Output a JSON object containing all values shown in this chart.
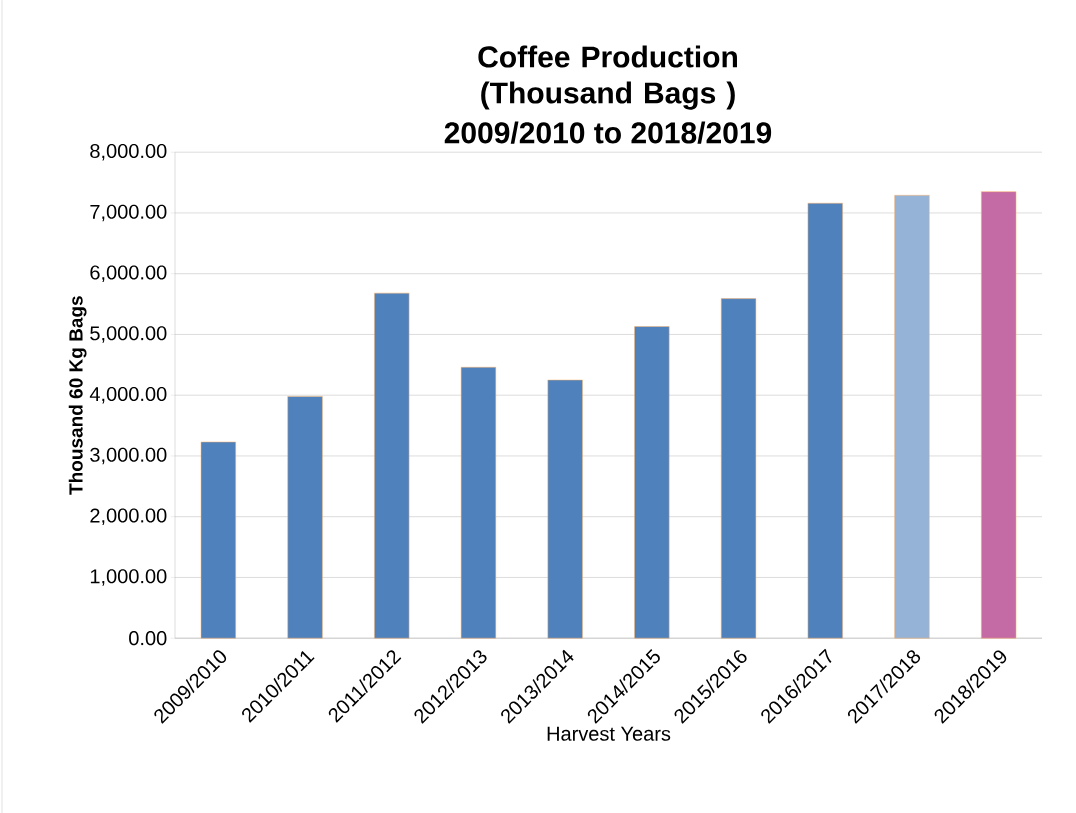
{
  "chart_data": {
    "type": "bar",
    "title": "Coffee Production (Thousand Bags )",
    "subtitle": "2009/2010  to  2018/2019",
    "xlabel": "Harvest Years",
    "ylabel": "Thousand 60 Kg Bags",
    "categories": [
      "2009/2010",
      "2010/2011",
      "2011/2012",
      "2012/2013",
      "2013/2014",
      "2014/2015",
      "2015/2016",
      "2016/2017",
      "2017/2018",
      "2018/2019"
    ],
    "values": [
      3230,
      3980,
      5680,
      4460,
      4250,
      5130,
      5590,
      7160,
      7290,
      7350
    ],
    "colors": [
      "#4f81bd",
      "#4f81bd",
      "#4f81bd",
      "#4f81bd",
      "#4f81bd",
      "#4f81bd",
      "#4f81bd",
      "#4f81bd",
      "#95b3d7",
      "#c46aa5"
    ],
    "ylim": [
      0,
      8000
    ],
    "yticks": [
      {
        "value": 0,
        "label": "0.00"
      },
      {
        "value": 1000,
        "label": "1,000.00"
      },
      {
        "value": 2000,
        "label": "2,000.00"
      },
      {
        "value": 3000,
        "label": "3,000.00"
      },
      {
        "value": 4000,
        "label": "4,000.00"
      },
      {
        "value": 5000,
        "label": "5,000.00"
      },
      {
        "value": 6000,
        "label": "6,000.00"
      },
      {
        "value": 7000,
        "label": "7,000.00"
      },
      {
        "value": 8000,
        "label": "8,000.00"
      }
    ],
    "grid": "y"
  }
}
